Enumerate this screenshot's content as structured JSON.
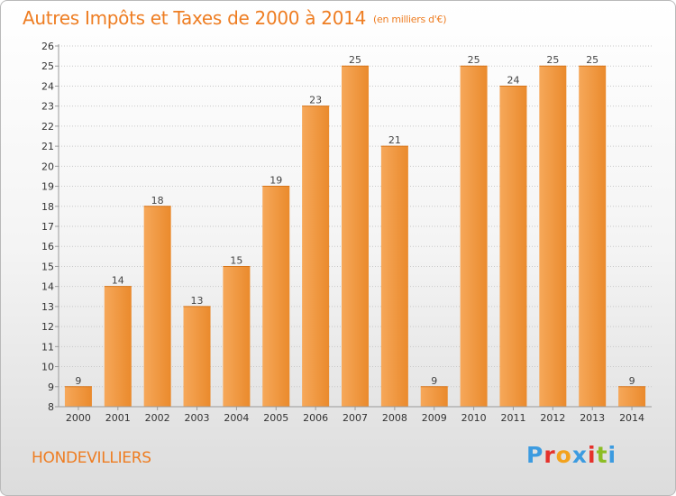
{
  "title": "Autres Impôts et Taxes de 2000 à 2014",
  "title_unit": "(en milliers d'€)",
  "place_name": "HONDEVILLIERS",
  "logo": {
    "letters": [
      "P",
      "r",
      "o",
      "x",
      "i",
      "t",
      "i"
    ],
    "colors": [
      "#3c9be0",
      "#e5312b",
      "#f3a21d",
      "#3c9be0",
      "#e5312b",
      "#8cbd24",
      "#3c9be0"
    ]
  },
  "colors": {
    "bar_light": "#f6a85a",
    "bar_dark": "#ea8a2c",
    "accent": "#ee7d22"
  },
  "chart_data": {
    "type": "bar",
    "title": "Autres Impôts et Taxes de 2000 à 2014",
    "subtitle": "(en milliers d'€)",
    "categories": [
      "2000",
      "2001",
      "2002",
      "2003",
      "2004",
      "2005",
      "2006",
      "2007",
      "2008",
      "2009",
      "2010",
      "2011",
      "2012",
      "2013",
      "2014"
    ],
    "values": [
      9,
      14,
      18,
      13,
      15,
      19,
      23,
      25,
      21,
      9,
      25,
      24,
      25,
      25,
      9
    ],
    "ylim": [
      8,
      26
    ],
    "yticks": [
      8,
      9,
      10,
      11,
      12,
      13,
      14,
      15,
      16,
      17,
      18,
      19,
      20,
      21,
      22,
      23,
      24,
      25,
      26
    ],
    "grid": "horizontal-dotted",
    "xlabel": "",
    "ylabel": ""
  }
}
